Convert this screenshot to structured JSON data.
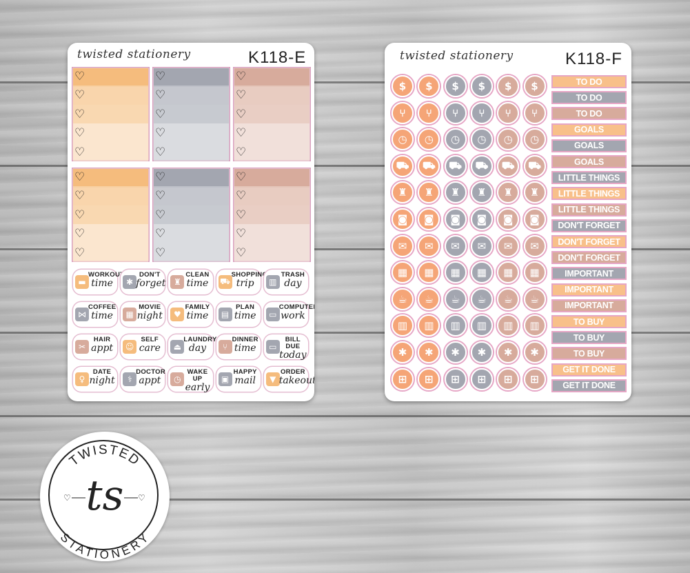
{
  "left_sheet": {
    "brand": "twisted stationery",
    "code": "K118-E",
    "columns": [
      {
        "top": "#f5bc7d",
        "mid": "#f8d3a7",
        "low": "#fbe6cf"
      },
      {
        "top": "#a3a6b0",
        "mid": "#c1c4cb",
        "low": "#dadce0"
      },
      {
        "top": "#d7ab9c",
        "mid": "#e6c8bd",
        "low": "#f1e0da"
      }
    ],
    "heart_glyph": "♡",
    "labels": [
      {
        "a": "WORKOUT",
        "b": "time",
        "icon": "dumbbell-icon",
        "color": "#f5bc7d",
        "glyph": "▬"
      },
      {
        "a": "DON'T",
        "b": "forget",
        "icon": "asterisk-icon",
        "color": "#a3a6b0",
        "glyph": "✱"
      },
      {
        "a": "CLEAN",
        "b": "time",
        "icon": "spray-bottle-icon",
        "color": "#d7ab9c",
        "glyph": "♜"
      },
      {
        "a": "SHOPPING",
        "b": "trip",
        "icon": "cart-icon",
        "color": "#f5bc7d",
        "glyph": "⛟"
      },
      {
        "a": "TRASH",
        "b": "day",
        "icon": "trash-icon",
        "color": "#a3a6b0",
        "glyph": "▥"
      },
      {
        "a": "COFFEE",
        "b": "time",
        "icon": "bow-icon",
        "color": "#a3a6b0",
        "glyph": "⋈"
      },
      {
        "a": "MOVIE",
        "b": "night",
        "icon": "clapperboard-icon",
        "color": "#d7ab9c",
        "glyph": "▦"
      },
      {
        "a": "FAMILY",
        "b": "time",
        "icon": "heart-icon",
        "color": "#f5bc7d",
        "glyph": "♥"
      },
      {
        "a": "PLAN",
        "b": "time",
        "icon": "planner-icon",
        "color": "#a3a6b0",
        "glyph": "▤"
      },
      {
        "a": "COMPUTER",
        "b": "work",
        "icon": "computer-icon",
        "color": "#a3a6b0",
        "glyph": "▭"
      },
      {
        "a": "HAIR",
        "b": "appt",
        "icon": "scissors-icon",
        "color": "#d7ab9c",
        "glyph": "✂"
      },
      {
        "a": "SELF",
        "b": "care",
        "icon": "face-mask-icon",
        "color": "#f5bc7d",
        "glyph": "☺"
      },
      {
        "a": "LAUNDRY",
        "b": "day",
        "icon": "hanger-icon",
        "color": "#a3a6b0",
        "glyph": "⏏"
      },
      {
        "a": "DINNER",
        "b": "time",
        "icon": "cutlery-icon",
        "color": "#d7ab9c",
        "glyph": "⑂"
      },
      {
        "a": "BILL DUE",
        "b": "today",
        "icon": "bill-icon",
        "color": "#a3a6b0",
        "glyph": "▭"
      },
      {
        "a": "DATE",
        "b": "night",
        "icon": "champagne-icon",
        "color": "#f5bc7d",
        "glyph": "♀"
      },
      {
        "a": "DOCTOR",
        "b": "appt",
        "icon": "stethoscope-icon",
        "color": "#a3a6b0",
        "glyph": "⚕"
      },
      {
        "a": "WAKE UP",
        "b": "early",
        "icon": "alarm-clock-icon",
        "color": "#d7ab9c",
        "glyph": "◷"
      },
      {
        "a": "HAPPY",
        "b": "mail",
        "icon": "package-icon",
        "color": "#a3a6b0",
        "glyph": "▣"
      },
      {
        "a": "ORDER",
        "b": "takeout",
        "icon": "takeout-icon",
        "color": "#f5bc7d",
        "glyph": "▼"
      }
    ]
  },
  "right_sheet": {
    "brand": "twisted stationery",
    "code": "K118-F",
    "circle_colors": [
      "#f5a577",
      "#f5a577",
      "#a3a6b0",
      "#a3a6b0",
      "#d7ab9c",
      "#d7ab9c"
    ],
    "circle_rows": [
      {
        "icon": "dollar-icon",
        "glyph": "$"
      },
      {
        "icon": "fork-knife-icon",
        "glyph": "⑂"
      },
      {
        "icon": "clock-icon",
        "glyph": "◷"
      },
      {
        "icon": "cart-icon",
        "glyph": "⛟"
      },
      {
        "icon": "spray-bottle-icon",
        "glyph": "♜"
      },
      {
        "icon": "washing-machine-icon",
        "glyph": "◙"
      },
      {
        "icon": "envelope-icon",
        "glyph": "✉"
      },
      {
        "icon": "gift-icon",
        "glyph": "▦"
      },
      {
        "icon": "coffee-cup-icon",
        "glyph": "☕"
      },
      {
        "icon": "trash-can-icon",
        "glyph": "▥"
      },
      {
        "icon": "asterisk-icon",
        "glyph": "✱"
      },
      {
        "icon": "dumbbell-icon",
        "glyph": "⊞"
      }
    ],
    "tags": [
      {
        "text": "TO DO",
        "color": "#f8c08a"
      },
      {
        "text": "TO DO",
        "color": "#a3a6b0"
      },
      {
        "text": "TO DO",
        "color": "#d7ab9c"
      },
      {
        "text": "GOALS",
        "color": "#f8c08a"
      },
      {
        "text": "GOALS",
        "color": "#a3a6b0"
      },
      {
        "text": "GOALS",
        "color": "#d7ab9c"
      },
      {
        "text": "LITTLE THINGS",
        "color": "#a3a6b0"
      },
      {
        "text": "LITTLE THINGS",
        "color": "#f8c08a"
      },
      {
        "text": "LITTLE THINGS",
        "color": "#d7ab9c"
      },
      {
        "text": "DON'T FORGET",
        "color": "#a3a6b0"
      },
      {
        "text": "DON'T FORGET",
        "color": "#f8c08a"
      },
      {
        "text": "DON'T FORGET",
        "color": "#d7ab9c"
      },
      {
        "text": "IMPORTANT",
        "color": "#a3a6b0"
      },
      {
        "text": "IMPORTANT",
        "color": "#f8c08a"
      },
      {
        "text": "IMPORTANT",
        "color": "#d7ab9c"
      },
      {
        "text": "TO BUY",
        "color": "#f8c08a"
      },
      {
        "text": "TO BUY",
        "color": "#a3a6b0"
      },
      {
        "text": "TO BUY",
        "color": "#d7ab9c"
      },
      {
        "text": "GET IT DONE",
        "color": "#f8c08a"
      },
      {
        "text": "GET IT DONE",
        "color": "#a3a6b0"
      }
    ]
  },
  "logo": {
    "top_text": "TWISTED",
    "bottom_text": "STATIONERY",
    "monogram": "ts"
  }
}
